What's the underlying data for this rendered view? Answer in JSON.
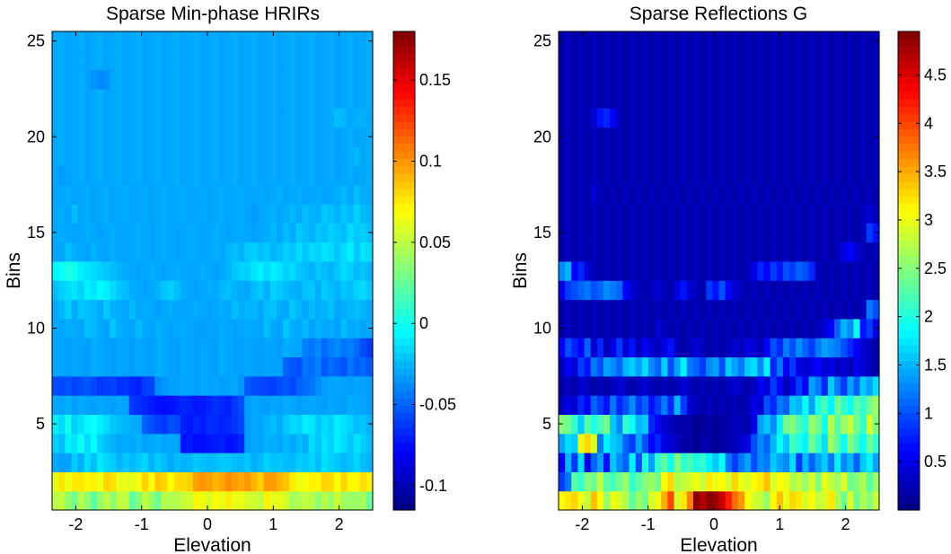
{
  "chart_data": [
    {
      "type": "heatmap",
      "title": "Sparse Min-phase HRIRs",
      "xlabel": "Elevation",
      "ylabel": "Bins",
      "xlim": [
        -2.36,
        2.51
      ],
      "ylim": [
        0.5,
        25.5
      ],
      "xticks": [
        -2,
        -1,
        0,
        1,
        2
      ],
      "xticklabels": [
        "-2",
        "-1",
        "0",
        "1",
        "2"
      ],
      "yticks": [
        5,
        10,
        15,
        20,
        25
      ],
      "yticklabels": [
        "5",
        "10",
        "15",
        "20",
        "25"
      ],
      "colormap": "jet",
      "clim": [
        -0.115,
        0.18
      ],
      "colorbar_ticks": [
        -0.1,
        -0.05,
        0,
        0.05,
        0.1,
        0.15
      ],
      "colorbar_ticklabels": [
        "-0.1",
        "-0.05",
        "0",
        "0.05",
        "0.1",
        "0.15"
      ],
      "grid": false,
      "columns": 50,
      "rows": 25,
      "values_by_row_from_bin1": [
        "5.58,5.64,5.21,4.85,5.52,5.16,4.61,5.20,5.61,5.15,5.64,5.65,4.70,5.01,5.61,5.25,4.82,5.51,5.50,5.50,5.69,5.81,6.34,6.10,5.86,6.27,6.03,6.43,6.04,6.09,5.82,5.79,5.62,6.37,6.00,6.01,5.84,5.38,5.45,5.65,5.55,5.14,5.51,5.25,5.73,5.33,5.24,5.27,5.38,4.81",
        "6.01,6.51,6.10,6.47,6.46,6.33,6.41,6.09,6.68,6.53,6.03,6.03,6.01,6.17,6.66,6.19,6.80,6.66,6.25,6.59,6.60,6.70,7.20,7.30,7.18,6.98,7.13,7.40,7.21,7.08,7.27,6.99,6.72,7.22,7.21,6.99,6.83,6.42,6.06,6.21,6.38,6.35,6.67,6.62,6.23,6.66,6.32,6.31,6.57,6.40",
        "2.93,2.80,2.85,3.24,2.95,3.42,3.11,3.53,3.35,3.26,3.00,3.20,3.05,3.20,3.35,3.00,3.25,3.10,2.90,3.10,3.00,3.05,3.20,3.15,3.05,3.10,3.25,3.20,3.10,3.05,3.20,2.95,3.10,3.30,3.15,3.20,3.10,3.05,3.25,3.20,3.35,3.10,3.45,3.30,3.20,3.05,3.15,3.35,3.10,3.00",
        "3.30,3.10,3.60,3.50,3.85,3.40,3.75,3.30,3.10,3.00,2.90,2.95,2.90,3.00,2.85,2.90,2.95,2.85,2.90,2.85,1.40,1.50,1.35,1.40,1.45,1.50,1.55,1.40,1.45,1.60,2.80,2.90,2.85,3.00,2.95,2.90,3.05,2.90,3.10,2.95,3.40,3.20,3.50,3.30,3.60,3.40,3.20,3.50,3.30,3.10",
        "3.60,3.40,3.90,3.30,3.50,3.70,3.80,3.60,3.40,3.20,3.10,3.00,2.95,2.90,2.20,2.00,1.90,1.80,2.05,1.95,1.55,1.45,1.60,1.50,1.70,1.65,1.55,1.60,1.80,1.95,2.80,2.90,2.85,3.00,3.10,2.95,3.20,3.40,3.30,3.60,3.50,3.20,3.40,3.30,3.60,3.50,3.30,3.10,3.20,3.00",
        "2.90,2.85,2.95,2.80,2.90,2.85,2.80,2.90,2.85,2.80,2.90,2.85,1.80,1.70,1.60,1.50,1.40,1.35,1.40,1.50,1.60,1.55,1.45,1.50,1.60,1.70,1.65,1.55,1.80,2.00,2.80,2.90,2.85,2.80,2.90,2.85,2.95,2.90,2.80,2.85,2.90,2.85,2.80,2.90,2.85,2.80,2.95,2.90,2.85,2.80",
        "2.00,1.95,2.05,1.90,2.00,2.10,1.95,1.80,1.85,1.90,1.70,1.75,1.60,1.55,1.85,1.90,2.60,2.70,2.80,2.85,2.90,2.85,2.80,2.90,2.85,2.90,2.80,2.85,2.90,2.70,2.10,2.00,1.95,1.90,1.85,2.00,2.10,1.95,2.20,2.30,2.40,2.60,2.80,2.85,2.90,2.85,2.80,2.90,2.85,2.80",
        "2.90,2.85,2.80,2.90,2.85,2.80,2.95,2.90,2.85,2.80,2.90,2.85,2.80,2.90,2.85,2.80,2.95,2.90,2.85,2.80,2.90,2.85,2.80,2.90,2.85,2.80,2.95,2.90,2.85,2.80,2.90,2.85,2.80,2.90,2.85,2.80,2.20,2.10,2.00,2.40,2.30,2.50,2.10,2.30,2.20,2.05,2.40,2.20,2.30,2.10",
        "2.90,2.85,2.80,2.90,2.85,2.80,2.95,2.90,2.85,2.80,2.90,2.85,2.80,2.90,2.85,2.80,2.95,2.90,2.85,2.80,2.90,2.85,2.80,2.90,2.85,2.80,2.95,2.90,2.85,2.80,2.90,2.85,2.80,2.90,2.85,2.80,2.95,2.90,2.85,2.50,2.40,2.60,2.30,2.50,2.60,2.40,2.50,2.30,2.00,1.80",
        "2.90,2.85,2.95,2.90,2.85,3.10,3.05,2.90,2.85,3.20,2.95,2.90,2.85,3.10,2.90,2.85,2.95,2.90,2.85,2.90,2.95,2.90,2.85,2.80,2.90,2.85,2.95,2.90,2.85,2.90,2.95,2.90,2.85,3.10,2.90,2.85,3.20,2.95,2.90,3.10,2.85,3.00,2.90,2.95,2.85,3.10,2.90,2.95,2.85,2.90",
        "2.90,3.05,3.30,2.95,3.20,3.10,3.05,2.90,3.20,3.00,2.95,2.90,3.10,2.90,2.95,2.90,2.85,2.90,2.95,2.90,2.85,2.90,2.95,2.90,2.85,2.90,2.95,2.90,3.10,2.95,3.00,3.05,2.90,3.10,3.15,2.95,2.90,3.20,3.05,2.90,3.10,2.95,3.00,3.15,2.90,2.95,3.05,3.10,3.00,2.90",
        "3.10,3.30,3.40,3.50,3.30,3.60,3.50,3.70,3.60,3.40,3.20,3.10,2.95,2.90,2.85,2.90,3.00,3.20,3.30,3.10,2.95,2.90,2.85,2.90,2.95,2.90,3.05,3.10,3.00,2.95,2.90,3.10,3.20,2.95,3.30,3.20,3.10,3.00,2.95,3.15,3.20,2.95,3.25,3.10,3.00,3.20,3.10,3.30,3.40,3.20",
        "3.70,3.80,4.00,3.90,3.60,3.50,3.40,3.30,3.20,3.10,3.00,2.95,2.90,2.85,2.90,2.95,2.90,2.85,2.90,2.95,2.90,2.85,2.90,2.95,2.90,2.85,2.90,3.00,3.20,3.30,3.30,3.50,3.60,3.40,3.60,3.50,3.30,3.40,3.20,3.10,3.00,3.20,3.10,3.00,3.20,3.40,3.30,3.10,3.20,3.00",
        "2.90,2.85,3.10,2.95,2.90,2.85,3.00,2.90,2.85,2.95,2.90,2.85,2.90,2.95,2.90,2.85,2.90,2.95,2.90,2.85,2.90,2.95,2.90,2.85,2.90,2.95,2.90,3.05,3.10,3.00,3.20,3.30,3.10,3.20,3.00,3.10,3.30,3.20,3.40,3.20,3.40,3.30,3.50,3.40,3.20,3.40,3.60,3.20,3.50,3.40",
        "2.90,2.95,2.90,2.85,2.90,2.95,2.90,2.85,2.90,2.95,2.90,2.85,2.90,2.95,2.90,2.85,2.90,2.95,2.90,2.85,2.90,2.95,2.90,2.85,2.90,2.95,2.90,2.85,2.90,2.95,2.90,2.85,2.90,2.95,3.05,2.90,3.10,2.95,3.20,3.10,3.00,3.20,3.10,3.30,3.20,3.10,3.40,3.20,3.30,3.10",
        "2.90,2.95,2.85,3.10,2.90,2.95,2.85,2.90,2.95,2.85,2.90,2.95,2.85,2.90,2.95,2.85,2.90,2.95,2.85,2.90,2.95,2.85,2.90,2.95,2.85,2.90,2.95,2.85,2.90,2.95,2.85,2.75,2.90,2.95,3.00,2.90,2.95,3.05,2.90,3.10,3.00,2.95,3.20,3.10,3.00,3.20,3.05,3.30,3.10,3.00",
        "2.85,2.90,2.95,2.85,2.90,2.95,2.85,2.90,2.95,2.85,2.90,2.95,2.85,2.90,2.95,2.85,2.90,2.95,2.85,2.90,2.95,2.85,2.90,2.95,2.85,2.90,2.95,2.85,2.90,2.95,2.85,2.90,2.95,2.85,2.90,2.95,2.85,2.90,2.95,2.85,2.90,2.95,2.85,2.90,2.95,3.05,2.90,3.10,2.95,2.90",
        "2.90,2.75,2.85,2.90,2.95,2.85,2.90,2.95,2.85,2.90,2.95,2.85,2.90,2.95,2.85,2.90,2.95,2.85,2.90,2.95,2.85,2.90,2.95,2.85,2.90,2.95,2.85,2.90,2.95,2.85,2.90,2.95,2.85,2.90,2.95,2.85,2.90,2.95,2.85,2.90,2.95,2.85,2.90,2.95,2.85,2.90,2.95,2.85,2.90,2.95",
        "2.90,2.95,2.85,2.90,2.95,2.85,2.90,2.95,2.85,2.90,2.95,2.85,2.90,2.95,2.85,2.90,2.95,2.85,2.90,2.95,2.85,2.90,2.95,2.85,2.90,2.95,2.85,2.90,2.95,2.85,2.90,2.95,2.85,2.90,2.95,2.85,2.90,2.95,2.85,2.90,2.95,2.85,2.90,2.95,2.85,2.90,2.95,3.05,2.90,2.95",
        "2.90,2.95,2.85,2.90,2.95,2.85,2.90,2.95,2.85,2.90,2.95,2.85,2.90,2.95,2.85,2.90,2.95,2.85,2.90,2.95,2.85,2.90,2.95,2.85,2.90,2.95,2.85,2.90,2.95,2.85,2.90,2.95,2.85,2.90,2.95,2.85,2.90,2.95,2.85,2.90,2.95,2.85,2.90,2.95,2.85,2.90,2.95,2.85,2.90,2.95",
        "2.90,2.95,2.85,2.90,2.95,2.85,2.90,2.95,2.85,2.90,2.95,2.85,2.90,2.95,2.85,2.90,2.95,2.85,2.90,2.95,2.85,2.90,2.95,2.85,2.90,2.95,2.85,2.90,2.95,2.85,2.90,2.95,2.85,2.90,2.95,2.85,2.90,2.95,2.85,2.90,2.95,2.85,2.90,2.95,3.10,3.05,2.90,2.95,3.00,2.90",
        "2.90,2.95,2.85,2.90,2.95,2.85,2.90,2.95,2.85,2.90,2.95,2.85,2.90,2.95,2.85,2.90,2.95,2.85,2.90,2.95,2.85,2.90,2.95,2.85,2.90,2.95,2.85,2.90,2.95,2.85,2.90,2.95,2.85,2.90,2.95,2.85,2.90,2.95,2.85,2.90,2.95,2.85,2.90,2.95,2.85,2.90,2.95,2.85,2.90,2.95",
        "2.90,2.95,2.85,2.90,2.95,2.85,2.70,2.60,2.65,2.90,2.95,2.85,2.90,2.95,2.85,2.90,2.95,2.85,2.90,2.95,2.85,2.90,2.95,2.85,2.90,2.95,2.85,2.90,2.95,2.85,2.90,2.95,2.85,2.90,2.95,2.85,2.90,2.95,2.85,2.90,2.95,2.85,2.90,2.95,2.85,2.90,2.95,2.85,2.90,2.95",
        "2.90,2.95,2.85,2.90,2.95,2.85,2.90,2.95,2.85,2.90,2.95,2.85,2.90,2.95,2.85,2.90,2.95,2.85,2.90,2.95,2.85,2.90,2.95,2.85,2.90,2.95,2.85,2.90,2.95,2.85,2.90,2.95,2.85,2.90,2.95,2.85,2.90,2.95,2.85,2.90,2.95,2.85,2.90,2.95,2.85,2.90,2.95,2.85,2.90,2.95",
        "2.90,2.95,2.85,2.90,2.95,2.85,2.90,2.95,2.85,2.90,2.95,2.85,2.90,2.95,2.85,2.90,2.95,2.85,2.90,2.95,2.85,2.90,2.95,2.85,2.90,2.95,2.85,2.90,2.95,2.85,2.90,2.95,2.85,2.90,2.95,2.85,2.90,2.95,2.85,2.90,2.95,2.85,2.90,2.95,2.85,2.90,2.95,2.85,2.90,2.95"
      ],
      "value_encoding": "decile-scaled (value = -0.115 + x * 0.0295)"
    },
    {
      "type": "heatmap",
      "title": "Sparse Reflections G",
      "xlabel": "Elevation",
      "ylabel": "Bins",
      "xlim": [
        -2.36,
        2.51
      ],
      "ylim": [
        0.5,
        25.5
      ],
      "xticks": [
        -2,
        -1,
        0,
        1,
        2
      ],
      "xticklabels": [
        "-2",
        "-1",
        "0",
        "1",
        "2"
      ],
      "yticks": [
        5,
        10,
        15,
        20,
        25
      ],
      "yticklabels": [
        "5",
        "10",
        "15",
        "20",
        "25"
      ],
      "colormap": "jet",
      "clim": [
        0,
        4.95
      ],
      "colorbar_ticks": [
        0.5,
        1,
        1.5,
        2,
        2.5,
        3,
        3.5,
        4,
        4.5
      ],
      "colorbar_ticklabels": [
        "0.5",
        "1",
        "1.5",
        "2",
        "2.5",
        "3",
        "3.5",
        "4",
        "4.5"
      ],
      "grid": false,
      "columns": 50,
      "rows": 25,
      "values_by_row_from_bin1": [
        "3.1,3.2,3.3,3.0,2.8,3.4,3.1,2.6,3.0,2.9,2.7,2.3,2.6,2.4,2.9,3.0,3.5,4.0,2.9,3.2,3.7,4.9,4.7,4.9,4.8,4.6,4.2,3.8,3.6,3.1,2.9,2.8,2.6,3.1,3.4,3.0,3.3,3.2,2.9,3.1,2.8,2.9,3.2,2.7,2.4,2.9,2.4,2.7,2.5,2.8",
        "0.9,1.2,2.3,2.1,2.5,2.4,2.8,2.3,2.2,2.4,2.6,2.1,2.3,2.5,2.6,2.4,3.1,3.3,2.7,2.8,2.9,3.0,2.8,3.2,3.0,3.1,2.9,3.3,3.0,2.9,3.1,3.2,3.4,2.9,3.1,3.0,2.7,2.8,2.6,2.9,2.5,3.0,2.8,2.6,2.9,2.4,2.5,2.7,2.3,2.6",
        "0.6,1.5,0.9,1.7,0.5,1.1,1.4,0.7,1.6,1.3,1.1,1.8,1.0,2.0,1.4,2.1,2.3,1.9,2.5,2.1,2.2,2.0,2.1,1.8,1.6,1.9,1.2,0.9,1.2,1.4,1.0,1.3,1.2,1.6,1.4,1.3,1.7,0.9,1.5,1.1,1.4,1.6,1.2,1.8,1.3,1.5,1.1,1.6,1.8,1.4",
        "1.4,1.7,1.6,3.0,3.3,2.9,1.2,1.8,1.6,1.5,1.1,0.9,1.4,1.0,0.6,0.8,0.5,0.4,0.3,0.2,0.2,0.1,0.2,0.2,0.1,0.2,0.2,0.3,0.4,0.5,1.0,1.3,1.1,1.5,1.9,1.6,2.2,2.0,1.8,2.4,2.1,1.7,2.6,2.3,1.9,2.5,2.2,1.9,2.4,2.1",
        "2.5,2.4,2.1,1.6,2.3,2.0,2.2,2.4,1.6,1.3,2.1,1.9,1.5,1.6,0.8,0.6,0.4,0.3,0.2,0.2,0.2,0.1,0.1,0.2,0.1,0.2,0.2,0.3,0.3,0.2,0.5,1.4,1.6,1.3,1.8,2.4,2.5,2.2,2.0,2.6,2.4,1.9,2.7,2.3,2.6,2.8,2.4,2.1,2.9,2.5",
        "0.3,0.5,0.4,0.8,0.6,1.1,0.9,0.7,1.2,0.8,1.0,1.3,0.9,1.1,0.7,0.9,1.2,0.8,1.5,0.9,0.4,0.3,0.2,0.3,0.2,0.3,0.2,0.3,0.2,0.3,0.5,0.4,1.0,0.8,1.2,1.1,1.6,1.5,1.9,1.4,2.0,2.2,1.8,2.4,2.1,1.9,2.3,2.1,2.4,2.6",
        "0.2,0.3,0.2,0.4,0.3,0.2,0.3,0.2,0.3,0.4,0.3,0.2,0.3,0.4,0.3,0.2,0.3,0.2,0.3,0.4,0.3,0.2,0.3,0.2,0.3,0.2,0.3,0.4,0.3,0.2,0.3,0.6,0.4,0.9,0.6,0.3,0.5,0.9,0.6,1.4,1.2,0.8,1.6,1.2,0.9,1.4,1.1,1.6,1.4,1.7",
        "0.3,0.6,0.4,0.9,0.7,1.2,1.0,1.4,1.3,1.1,1.5,1.6,1.4,1.7,1.3,1.1,1.6,1.0,1.4,1.8,1.2,1.1,0.9,1.3,1.4,1.0,1.6,1.4,1.2,1.6,1.7,1.3,1.8,0.8,1.2,0.6,0.9,0.5,0.4,0.5,0.6,0.4,0.5,0.3,0.4,0.3,0.5,0.4,0.3,0.2",
        "0.6,1.0,0.8,0.6,1.1,0.4,0.8,0.3,0.5,0.9,0.4,0.7,0.3,0.6,0.4,0.3,0.5,0.7,0.3,0.2,0.3,0.4,0.3,0.2,0.3,0.2,0.3,0.4,0.3,0.5,0.4,0.3,0.6,1.0,0.8,1.2,1.0,1.3,1.1,0.9,1.2,1.4,1.3,1.2,1.0,0.8,0.6,0.4,0.3,0.2",
        "0.2,0.3,0.2,0.3,0.2,0.3,0.2,0.3,0.2,0.3,0.2,0.3,0.2,0.3,0.2,0.4,0.3,0.2,0.3,0.2,0.3,0.2,0.3,0.2,0.3,0.2,0.3,0.2,0.3,0.2,0.3,0.2,0.3,0.2,0.3,0.2,0.3,0.2,0.3,0.2,0.3,0.4,0.6,1.1,1.5,1.3,1.9,0.7,0.9,0.5",
        "0.2,0.3,0.2,0.3,0.2,0.3,0.2,0.3,0.2,0.3,0.2,0.3,0.2,0.3,0.2,0.3,0.2,0.3,0.2,0.3,0.2,0.3,0.2,0.3,0.2,0.3,0.2,0.3,0.2,0.3,0.2,0.3,0.2,0.3,0.2,0.3,0.2,0.3,0.2,0.3,0.2,0.3,0.2,0.3,0.2,0.3,0.2,0.3,1.2,1.0",
        "0.5,0.9,1.0,1.1,1.2,1.0,1.1,1.3,1.2,1.1,0.6,0.4,0.3,0.2,0.3,0.4,0.3,0.2,0.5,0.7,0.4,0.3,0.2,0.9,0.7,1.0,0.6,0.4,0.3,0.2,0.3,0.2,0.3,0.2,0.3,0.2,0.3,0.2,0.3,0.2,0.3,0.2,0.3,0.2,0.3,0.2,0.3,0.2,0.3,0.2",
        "1.3,1.5,0.6,0.8,0.4,0.3,0.2,0.3,0.2,0.3,0.2,0.3,0.2,0.3,0.2,0.3,0.2,0.3,0.2,0.3,0.2,0.3,0.2,0.3,0.2,0.3,0.2,0.3,0.2,0.3,0.5,0.8,0.6,0.9,0.7,1.0,0.9,1.1,1.0,0.8,0.3,0.2,0.3,0.2,0.3,0.2,0.3,0.2,0.3,0.2",
        "0.2,0.3,0.2,0.3,0.2,0.3,0.2,0.3,0.2,0.3,0.2,0.3,0.2,0.3,0.2,0.3,0.2,0.3,0.2,0.3,0.2,0.3,0.2,0.3,0.2,0.3,0.2,0.3,0.2,0.3,0.2,0.3,0.2,0.3,0.2,0.3,0.2,0.3,0.2,0.3,0.2,0.3,0.2,0.3,0.5,0.6,0.4,0.3,0.2,0.3",
        "0.2,0.3,0.2,0.3,0.2,0.3,0.2,0.3,0.2,0.3,0.2,0.3,0.2,0.3,0.2,0.3,0.2,0.3,0.2,0.3,0.2,0.3,0.2,0.3,0.2,0.3,0.2,0.3,0.2,0.3,0.2,0.3,0.2,0.3,0.2,0.3,0.2,0.3,0.2,0.3,0.2,0.3,0.2,0.3,0.2,0.3,0.2,0.3,0.9,0.7",
        "0.2,0.3,0.2,0.3,0.2,0.3,0.2,0.3,0.2,0.3,0.2,0.3,0.2,0.3,0.2,0.3,0.2,0.3,0.2,0.3,0.2,0.3,0.2,0.3,0.2,0.3,0.2,0.3,0.2,0.3,0.2,0.3,0.2,0.3,0.2,0.3,0.2,0.3,0.2,0.3,0.2,0.3,0.2,0.3,0.2,0.3,0.2,0.3,0.4,0.3",
        "0.2,0.3,0.2,0.3,0.2,0.4,0.3,0.2,0.3,0.2,0.3,0.2,0.3,0.2,0.3,0.2,0.3,0.2,0.3,0.2,0.3,0.2,0.3,0.2,0.3,0.2,0.3,0.2,0.3,0.2,0.3,0.2,0.3,0.2,0.3,0.2,0.3,0.2,0.3,0.2,0.3,0.2,0.3,0.2,0.3,0.2,0.3,0.2,0.3,0.2",
        "0.2,0.3,0.2,0.3,0.2,0.3,0.2,0.3,0.2,0.3,0.2,0.3,0.2,0.3,0.2,0.3,0.2,0.3,0.2,0.3,0.2,0.3,0.2,0.3,0.2,0.3,0.2,0.3,0.2,0.3,0.2,0.3,0.2,0.3,0.2,0.3,0.2,0.3,0.2,0.3,0.2,0.3,0.2,0.3,0.2,0.3,0.2,0.3,0.2,0.3",
        "0.2,0.3,0.2,0.3,0.2,0.3,0.2,0.3,0.2,0.3,0.2,0.3,0.2,0.3,0.2,0.3,0.2,0.3,0.2,0.3,0.2,0.3,0.2,0.3,0.2,0.3,0.2,0.3,0.2,0.3,0.2,0.3,0.2,0.3,0.2,0.3,0.2,0.3,0.2,0.3,0.2,0.3,0.2,0.3,0.2,0.3,0.2,0.3,0.2,0.3",
        "0.2,0.3,0.2,0.3,0.2,0.3,0.2,0.3,0.2,0.3,0.2,0.3,0.2,0.3,0.2,0.3,0.2,0.3,0.2,0.3,0.2,0.3,0.2,0.3,0.2,0.3,0.2,0.3,0.2,0.3,0.2,0.3,0.2,0.3,0.2,0.3,0.2,0.3,0.2,0.3,0.2,0.3,0.2,0.3,0.2,0.3,0.2,0.3,0.2,0.3",
        "0.2,0.3,0.2,0.3,0.2,0.4,0.7,0.8,0.6,0.3,0.2,0.3,0.2,0.3,0.2,0.3,0.2,0.3,0.2,0.3,0.2,0.3,0.2,0.3,0.2,0.3,0.2,0.3,0.2,0.3,0.2,0.3,0.2,0.3,0.2,0.3,0.2,0.3,0.2,0.3,0.2,0.3,0.2,0.3,0.2,0.3,0.2,0.3,0.2,0.3",
        "0.2,0.3,0.2,0.3,0.2,0.3,0.2,0.3,0.2,0.3,0.2,0.3,0.2,0.3,0.2,0.3,0.2,0.3,0.2,0.3,0.2,0.3,0.2,0.3,0.2,0.3,0.2,0.3,0.2,0.3,0.2,0.3,0.2,0.3,0.2,0.3,0.2,0.3,0.2,0.3,0.2,0.3,0.2,0.3,0.2,0.3,0.2,0.3,0.2,0.3",
        "0.2,0.3,0.2,0.3,0.2,0.3,0.2,0.3,0.2,0.3,0.2,0.3,0.2,0.3,0.2,0.3,0.2,0.3,0.2,0.3,0.2,0.3,0.2,0.3,0.2,0.3,0.2,0.3,0.2,0.3,0.2,0.3,0.2,0.3,0.2,0.3,0.2,0.3,0.2,0.3,0.2,0.3,0.2,0.3,0.2,0.3,0.2,0.3,0.2,0.3",
        "0.2,0.3,0.2,0.3,0.2,0.3,0.2,0.3,0.2,0.3,0.2,0.3,0.2,0.3,0.2,0.3,0.2,0.3,0.2,0.3,0.2,0.3,0.2,0.3,0.2,0.3,0.2,0.3,0.2,0.3,0.2,0.3,0.2,0.3,0.2,0.3,0.2,0.3,0.2,0.3,0.2,0.3,0.2,0.3,0.2,0.3,0.2,0.3,0.2,0.3",
        "0.2,0.3,0.2,0.3,0.2,0.3,0.2,0.3,0.2,0.3,0.2,0.3,0.2,0.3,0.2,0.3,0.2,0.3,0.2,0.3,0.2,0.3,0.2,0.3,0.2,0.3,0.2,0.3,0.2,0.3,0.2,0.3,0.2,0.3,0.2,0.3,0.2,0.3,0.2,0.3,0.2,0.3,0.2,0.3,0.2,0.3,0.2,0.3,0.2,0.3"
      ]
    }
  ]
}
